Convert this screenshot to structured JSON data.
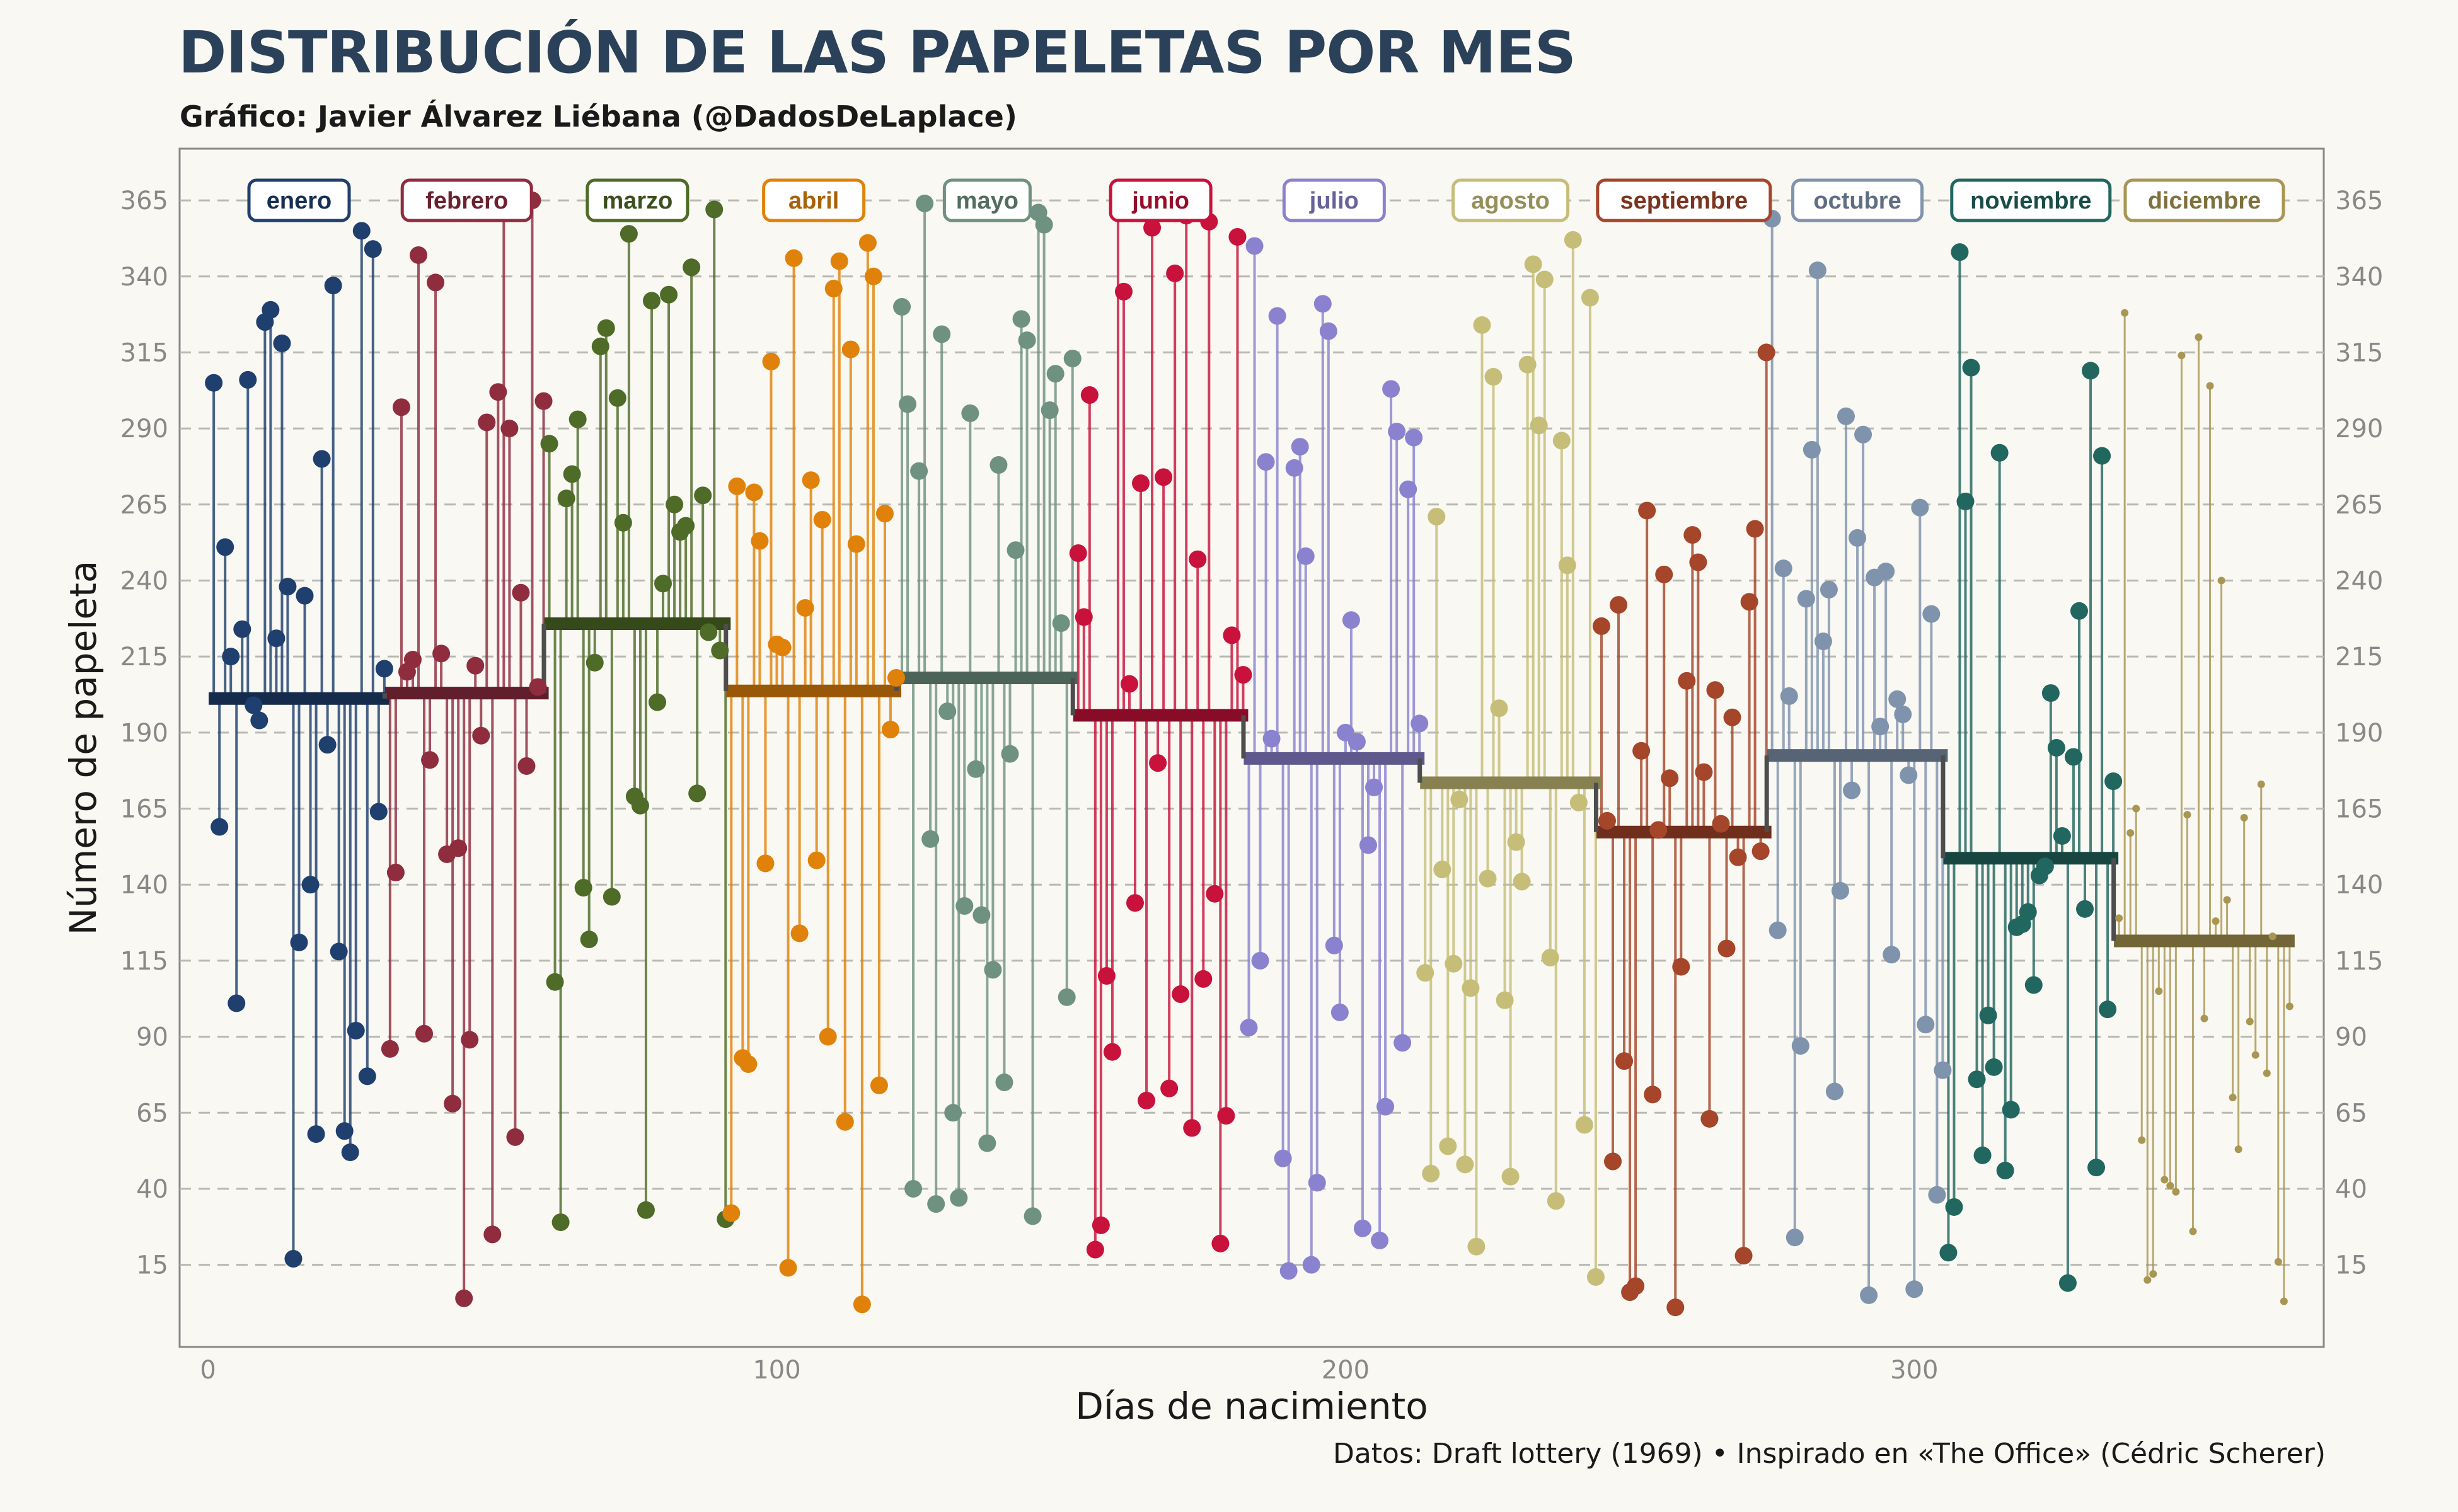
{
  "title": "DISTRIBUCIÓN DE LAS PAPELETAS POR MES",
  "subtitle": "Gráfico: Javier Álvarez Liébana (@DadosDeLaplace)",
  "caption": "Datos: Draft lottery (1969) • Inspirado en «The Office» (Cédric Scherer)",
  "chart_data": {
    "type": "scatter",
    "xlabel": "Días de nacimiento",
    "ylabel": "Número de papeleta",
    "xlim": [
      -5,
      372
    ],
    "ylim": [
      -12,
      382
    ],
    "xticks": [
      0,
      100,
      200,
      300
    ],
    "yticks": [
      15,
      40,
      65,
      90,
      115,
      140,
      165,
      190,
      215,
      240,
      265,
      290,
      315,
      340,
      365
    ],
    "grid": "horizontal-dashed",
    "months": [
      {
        "name": "enero",
        "start": 1,
        "end": 31,
        "mean": 201.2,
        "color": "#1f3f6e",
        "values": [
          305,
          159,
          251,
          215,
          101,
          224,
          306,
          199,
          194,
          325,
          329,
          221,
          318,
          238,
          17,
          121,
          235,
          140,
          58,
          280,
          186,
          337,
          118,
          59,
          52,
          92,
          355,
          77,
          349,
          164,
          211
        ]
      },
      {
        "name": "febrero",
        "start": 32,
        "end": 59,
        "mean": 203.0,
        "color": "#8f2d3f",
        "values": [
          86,
          144,
          297,
          210,
          214,
          347,
          91,
          181,
          338,
          216,
          150,
          68,
          152,
          4,
          89,
          212,
          189,
          292,
          25,
          302,
          363,
          290,
          57,
          236,
          179,
          365,
          205,
          299
        ]
      },
      {
        "name": "marzo",
        "start": 60,
        "end": 91,
        "mean": 225.8,
        "color": "#4e6b28",
        "values": [
          285,
          108,
          29,
          267,
          275,
          293,
          139,
          122,
          213,
          317,
          323,
          136,
          300,
          259,
          354,
          169,
          166,
          33,
          332,
          200,
          239,
          334,
          265,
          256,
          258,
          343,
          170,
          268,
          223,
          362,
          217,
          30
        ]
      },
      {
        "name": "abril",
        "start": 92,
        "end": 121,
        "mean": 203.7,
        "color": "#e0820a",
        "values": [
          32,
          271,
          83,
          81,
          269,
          253,
          147,
          312,
          219,
          218,
          14,
          346,
          124,
          231,
          273,
          148,
          260,
          90,
          336,
          345,
          62,
          316,
          252,
          2,
          351,
          340,
          74,
          262,
          191,
          208
        ]
      },
      {
        "name": "mayo",
        "start": 122,
        "end": 152,
        "mean": 208.0,
        "color": "#6f9181",
        "values": [
          330,
          298,
          40,
          276,
          364,
          155,
          35,
          321,
          197,
          65,
          37,
          133,
          295,
          178,
          130,
          55,
          112,
          278,
          75,
          183,
          250,
          326,
          319,
          31,
          361,
          357,
          296,
          308,
          226,
          103,
          313
        ]
      },
      {
        "name": "junio",
        "start": 153,
        "end": 182,
        "mean": 195.7,
        "color": "#c8123b",
        "values": [
          249,
          228,
          301,
          20,
          28,
          110,
          85,
          366,
          335,
          206,
          134,
          272,
          69,
          356,
          180,
          274,
          73,
          341,
          104,
          360,
          60,
          247,
          109,
          358,
          137,
          22,
          64,
          222,
          353,
          209
        ]
      },
      {
        "name": "julio",
        "start": 183,
        "end": 213,
        "mean": 181.5,
        "color": "#8a82cf",
        "values": [
          93,
          350,
          115,
          279,
          188,
          327,
          50,
          13,
          277,
          284,
          248,
          15,
          42,
          331,
          322,
          120,
          98,
          190,
          227,
          187,
          27,
          153,
          172,
          23,
          67,
          303,
          289,
          88,
          270,
          287,
          193
        ]
      },
      {
        "name": "agosto",
        "start": 214,
        "end": 244,
        "mean": 173.5,
        "color": "#c6be78",
        "values": [
          111,
          45,
          261,
          145,
          54,
          114,
          168,
          48,
          106,
          21,
          324,
          142,
          307,
          198,
          102,
          44,
          154,
          141,
          311,
          344,
          291,
          339,
          116,
          36,
          286,
          245,
          352,
          167,
          61,
          333,
          11
        ]
      },
      {
        "name": "septiembre",
        "start": 245,
        "end": 274,
        "mean": 157.3,
        "color": "#a5452a",
        "values": [
          225,
          161,
          49,
          232,
          82,
          6,
          8,
          184,
          263,
          71,
          158,
          242,
          175,
          1,
          113,
          207,
          255,
          246,
          177,
          63,
          204,
          160,
          119,
          195,
          149,
          18,
          233,
          257,
          151,
          315
        ]
      },
      {
        "name": "octubre",
        "start": 275,
        "end": 305,
        "mean": 182.5,
        "color": "#7f93ad",
        "values": [
          359,
          125,
          244,
          202,
          24,
          87,
          234,
          283,
          342,
          220,
          237,
          72,
          138,
          294,
          171,
          254,
          288,
          5,
          241,
          192,
          243,
          117,
          201,
          196,
          176,
          7,
          264,
          94,
          229,
          38,
          79
        ]
      },
      {
        "name": "noviembre",
        "start": 306,
        "end": 335,
        "mean": 148.7,
        "color": "#22675f",
        "values": [
          19,
          34,
          348,
          266,
          310,
          76,
          51,
          97,
          80,
          282,
          46,
          66,
          126,
          127,
          131,
          107,
          143,
          146,
          203,
          185,
          156,
          9,
          182,
          230,
          132,
          309,
          47,
          281,
          99,
          174
        ]
      },
      {
        "name": "diciembre",
        "start": 336,
        "end": 366,
        "mean": 121.5,
        "color": "#a89652",
        "values": [
          129,
          328,
          157,
          165,
          56,
          10,
          12,
          105,
          43,
          41,
          39,
          314,
          163,
          26,
          320,
          96,
          304,
          128,
          240,
          135,
          70,
          53,
          162,
          95,
          84,
          173,
          78,
          123,
          16,
          3,
          100
        ]
      }
    ]
  }
}
